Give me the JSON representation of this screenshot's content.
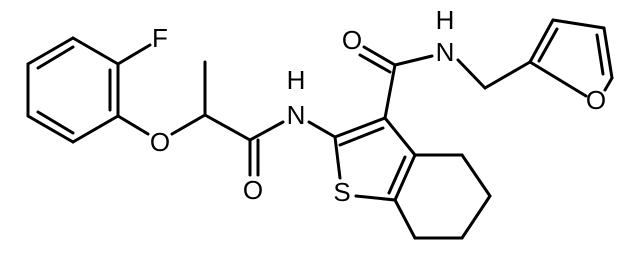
{
  "atoms": [
    {
      "label": "F"
    },
    {
      "label": "O"
    },
    {
      "label": "H"
    },
    {
      "label": "N"
    },
    {
      "label": "O"
    },
    {
      "label": "S"
    },
    {
      "label": "O"
    },
    {
      "label": "H"
    },
    {
      "label": "N"
    },
    {
      "label": "O"
    }
  ]
}
